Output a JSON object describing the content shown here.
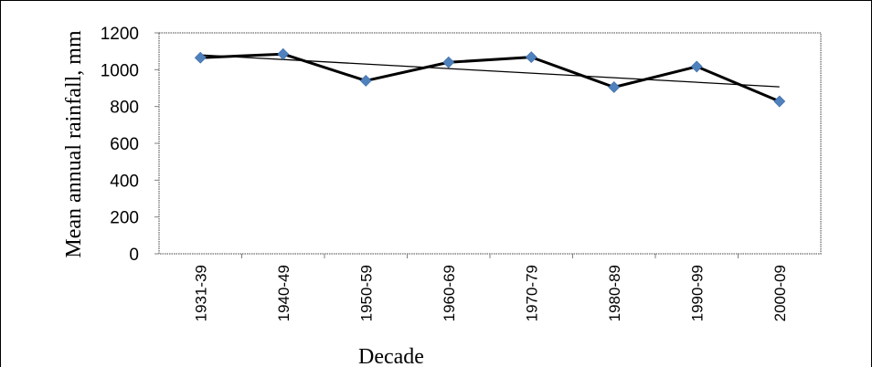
{
  "chart_data": {
    "type": "line",
    "title": "",
    "xlabel": "Decade",
    "ylabel": "Mean annual rainfall, mm",
    "categories": [
      "1931-39",
      "1940-49",
      "1950-59",
      "1960-69",
      "1970-79",
      "1980-89",
      "1990-99",
      "2000-09"
    ],
    "series": [
      {
        "values": [
          1065,
          1085,
          940,
          1040,
          1068,
          905,
          1017,
          828
        ],
        "line_color": "#000000",
        "marker": "diamond",
        "marker_color": "#4f81bd"
      }
    ],
    "trendline": {
      "type": "linear",
      "color": "#000000"
    },
    "ylim": [
      0,
      1200
    ],
    "yticks": [
      0,
      200,
      400,
      600,
      800,
      1000,
      1200
    ],
    "grid": false,
    "legend": "none"
  }
}
